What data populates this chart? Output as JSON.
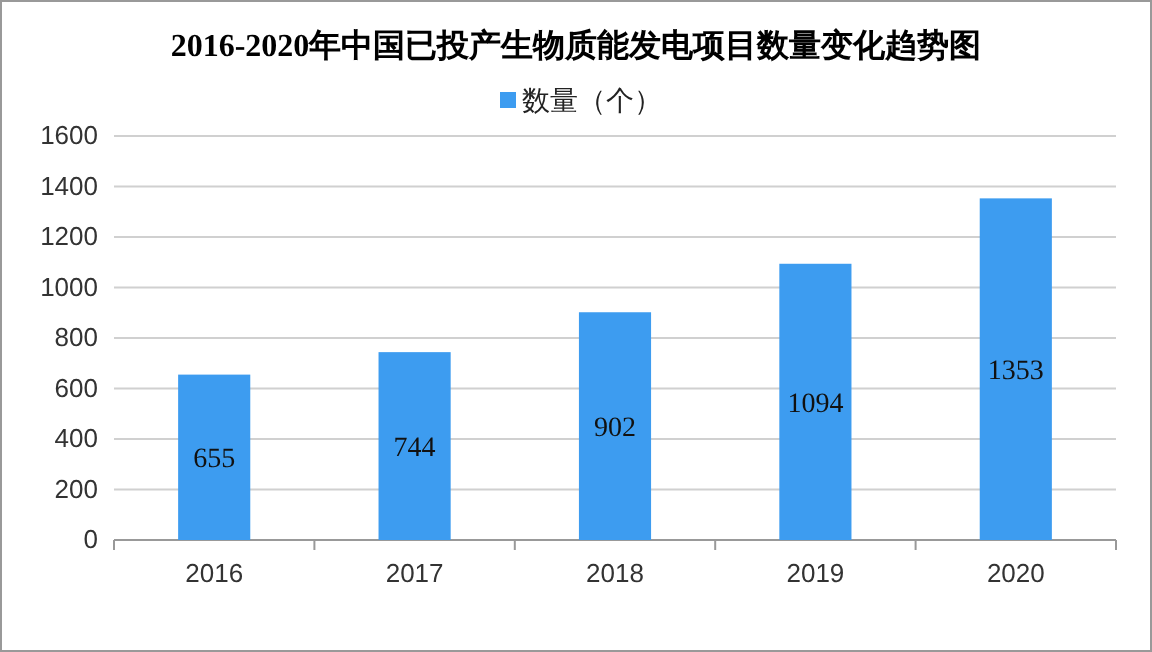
{
  "chart_data": {
    "type": "bar",
    "title": "2016-2020年中国已投产生物质能发电项目数量变化趋势图",
    "categories": [
      "2016",
      "2017",
      "2018",
      "2019",
      "2020"
    ],
    "series": [
      {
        "name": "数量（个）",
        "color": "#3d9cf0",
        "values": [
          655,
          744,
          902,
          1094,
          1353
        ]
      }
    ],
    "ylim": [
      0,
      1600
    ],
    "yticks": [
      0,
      200,
      400,
      600,
      800,
      1000,
      1200,
      1400,
      1600
    ],
    "grid": "y",
    "legend": "top",
    "data_labels": true
  }
}
